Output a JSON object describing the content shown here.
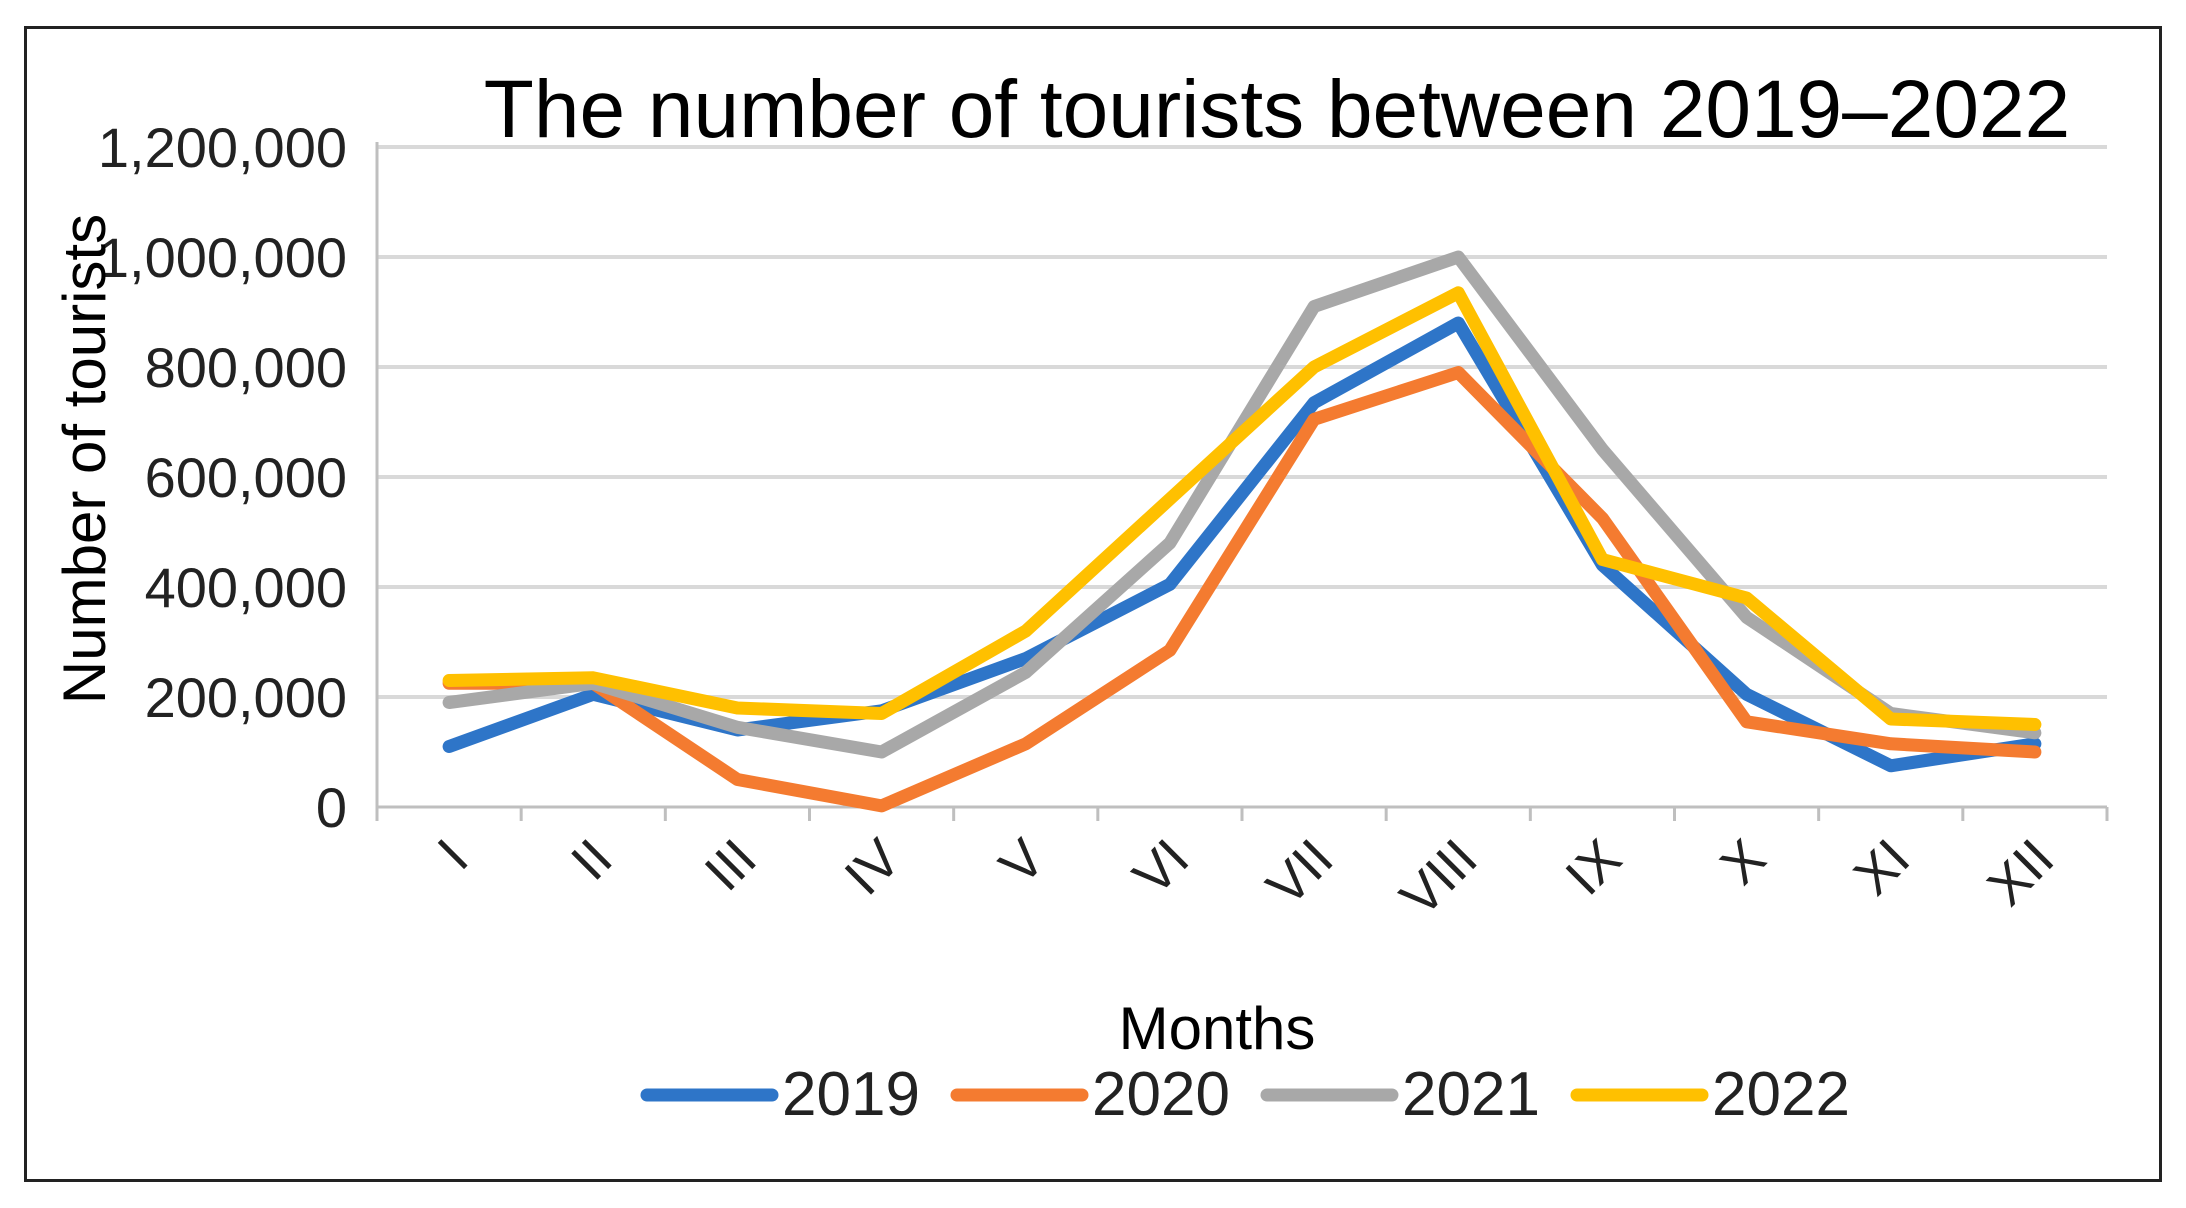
{
  "chart_data": {
    "type": "line",
    "title": "The number of tourists between 2019–2022",
    "xlabel": "Months",
    "ylabel": "Number of tourists",
    "ylim": [
      0,
      1200000
    ],
    "yticks": [
      "0",
      "200,000",
      "400,000",
      "600,000",
      "800,000",
      "1,000,000",
      "1,200,000"
    ],
    "categories": [
      "I",
      "II",
      "III",
      "IV",
      "V",
      "VI",
      "VII",
      "VIII",
      "IX",
      "X",
      "XI",
      "XII"
    ],
    "grid": true,
    "legend_position": "bottom",
    "series": [
      {
        "name": "2019",
        "color": "#2e75c8",
        "values": [
          110000,
          205000,
          140000,
          175000,
          270000,
          405000,
          735000,
          880000,
          440000,
          205000,
          75000,
          115000
        ]
      },
      {
        "name": "2020",
        "color": "#f47b30",
        "values": [
          225000,
          225000,
          50000,
          2000,
          115000,
          285000,
          705000,
          790000,
          525000,
          155000,
          115000,
          100000
        ]
      },
      {
        "name": "2021",
        "color": "#a8a8a8",
        "values": [
          190000,
          225000,
          145000,
          100000,
          245000,
          480000,
          910000,
          1000000,
          650000,
          345000,
          170000,
          135000
        ]
      },
      {
        "name": "2022",
        "color": "#ffc000",
        "values": [
          230000,
          235000,
          180000,
          170000,
          320000,
          560000,
          800000,
          935000,
          450000,
          380000,
          160000,
          150000
        ]
      }
    ]
  }
}
